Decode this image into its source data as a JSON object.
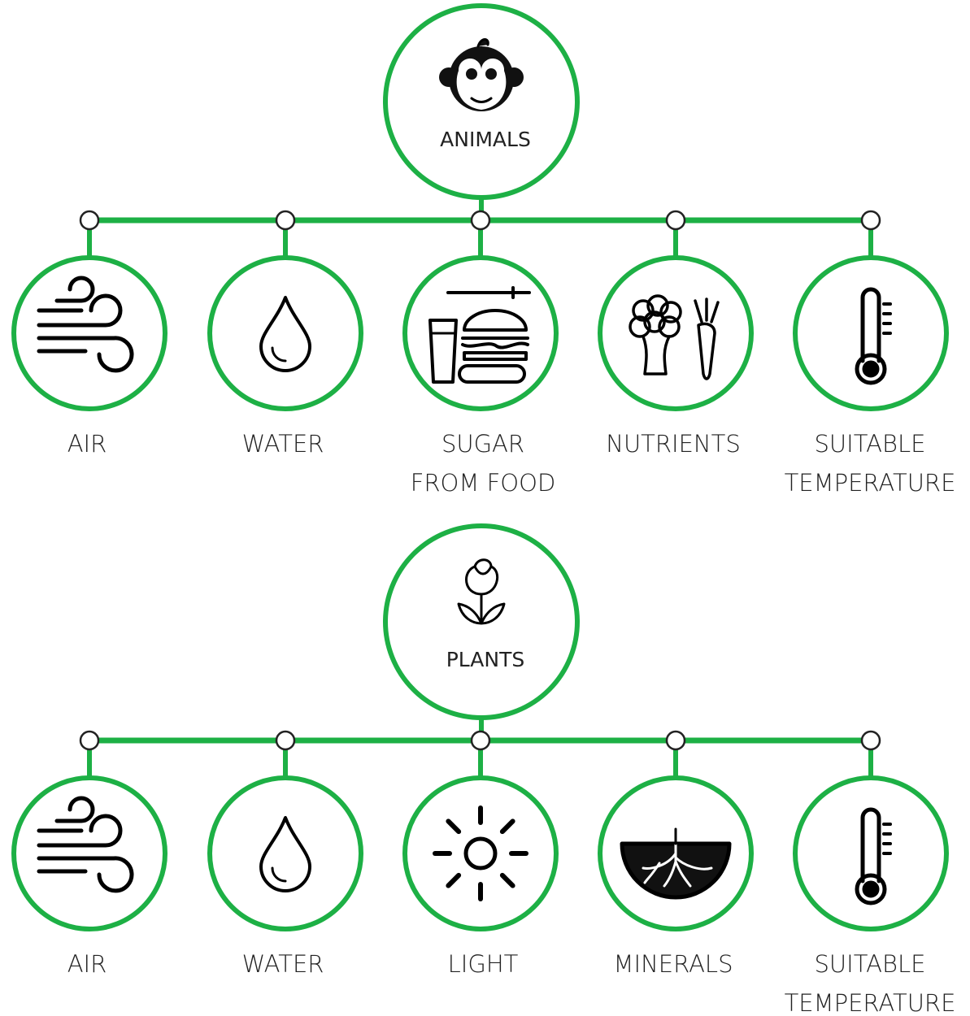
{
  "trees": [
    {
      "root": {
        "label": "ANIMALS"
      },
      "children": [
        {
          "label": [
            "AIR"
          ]
        },
        {
          "label": [
            "WATER"
          ]
        },
        {
          "label": [
            "SUGAR",
            "FROM FOOD"
          ]
        },
        {
          "label": [
            "NUTRIENTS"
          ]
        },
        {
          "label": [
            "SUITABLE",
            "TEMPERATURE"
          ]
        }
      ]
    },
    {
      "root": {
        "label": "PLANTS"
      },
      "children": [
        {
          "label": [
            "AIR"
          ]
        },
        {
          "label": [
            "WATER"
          ]
        },
        {
          "label": [
            "LIGHT"
          ]
        },
        {
          "label": [
            "MINERALS"
          ]
        },
        {
          "label": [
            "SUITABLE",
            "TEMPERATURE"
          ]
        }
      ]
    }
  ]
}
